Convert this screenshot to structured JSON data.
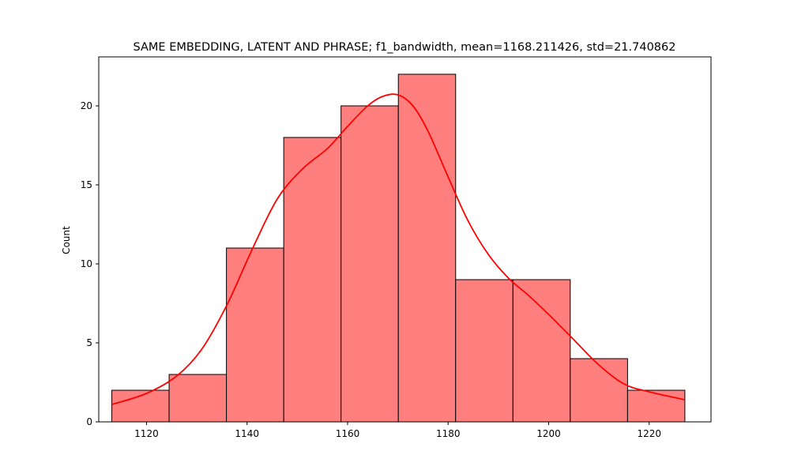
{
  "chart_data": {
    "type": "bar",
    "title": "SAME EMBEDDING, LATENT AND PHRASE; f1_bandwidth, mean=1168.211426, std=21.740862",
    "xlabel": "",
    "ylabel": "Count",
    "xlim": [
      1110.5,
      1232.3
    ],
    "ylim": [
      0,
      23.1
    ],
    "x_ticks": [
      1120,
      1140,
      1160,
      1180,
      1200,
      1220
    ],
    "y_ticks": [
      0,
      5,
      10,
      15,
      20
    ],
    "bin_edges": [
      1113.1,
      1124.5,
      1135.9,
      1147.3,
      1158.7,
      1170.1,
      1181.5,
      1192.9,
      1204.3,
      1215.7,
      1227.1
    ],
    "counts": [
      2,
      3,
      11,
      18,
      20,
      22,
      9,
      9,
      4,
      2
    ],
    "kde": {
      "x": [
        1113.1,
        1120.0,
        1126.0,
        1131.0,
        1136.0,
        1141.0,
        1146.0,
        1151.0,
        1156.0,
        1160.0,
        1164.0,
        1167.0,
        1170.0,
        1173.0,
        1176.0,
        1180.0,
        1184.0,
        1188.0,
        1192.0,
        1196.0,
        1200.0,
        1205.0,
        1210.0,
        1215.0,
        1220.0,
        1227.1
      ],
      "y": [
        1.1,
        1.8,
        2.9,
        4.6,
        7.4,
        10.9,
        14.1,
        16.0,
        17.3,
        18.7,
        20.0,
        20.6,
        20.7,
        20.0,
        18.4,
        15.5,
        12.7,
        10.6,
        9.1,
        8.0,
        6.8,
        5.2,
        3.6,
        2.4,
        1.9,
        1.4
      ]
    },
    "grid": false,
    "legend": "none",
    "colors": {
      "bar_fill": "#ff7f7f",
      "bar_edge": "#000000",
      "kde_line": "#ff0000"
    }
  }
}
